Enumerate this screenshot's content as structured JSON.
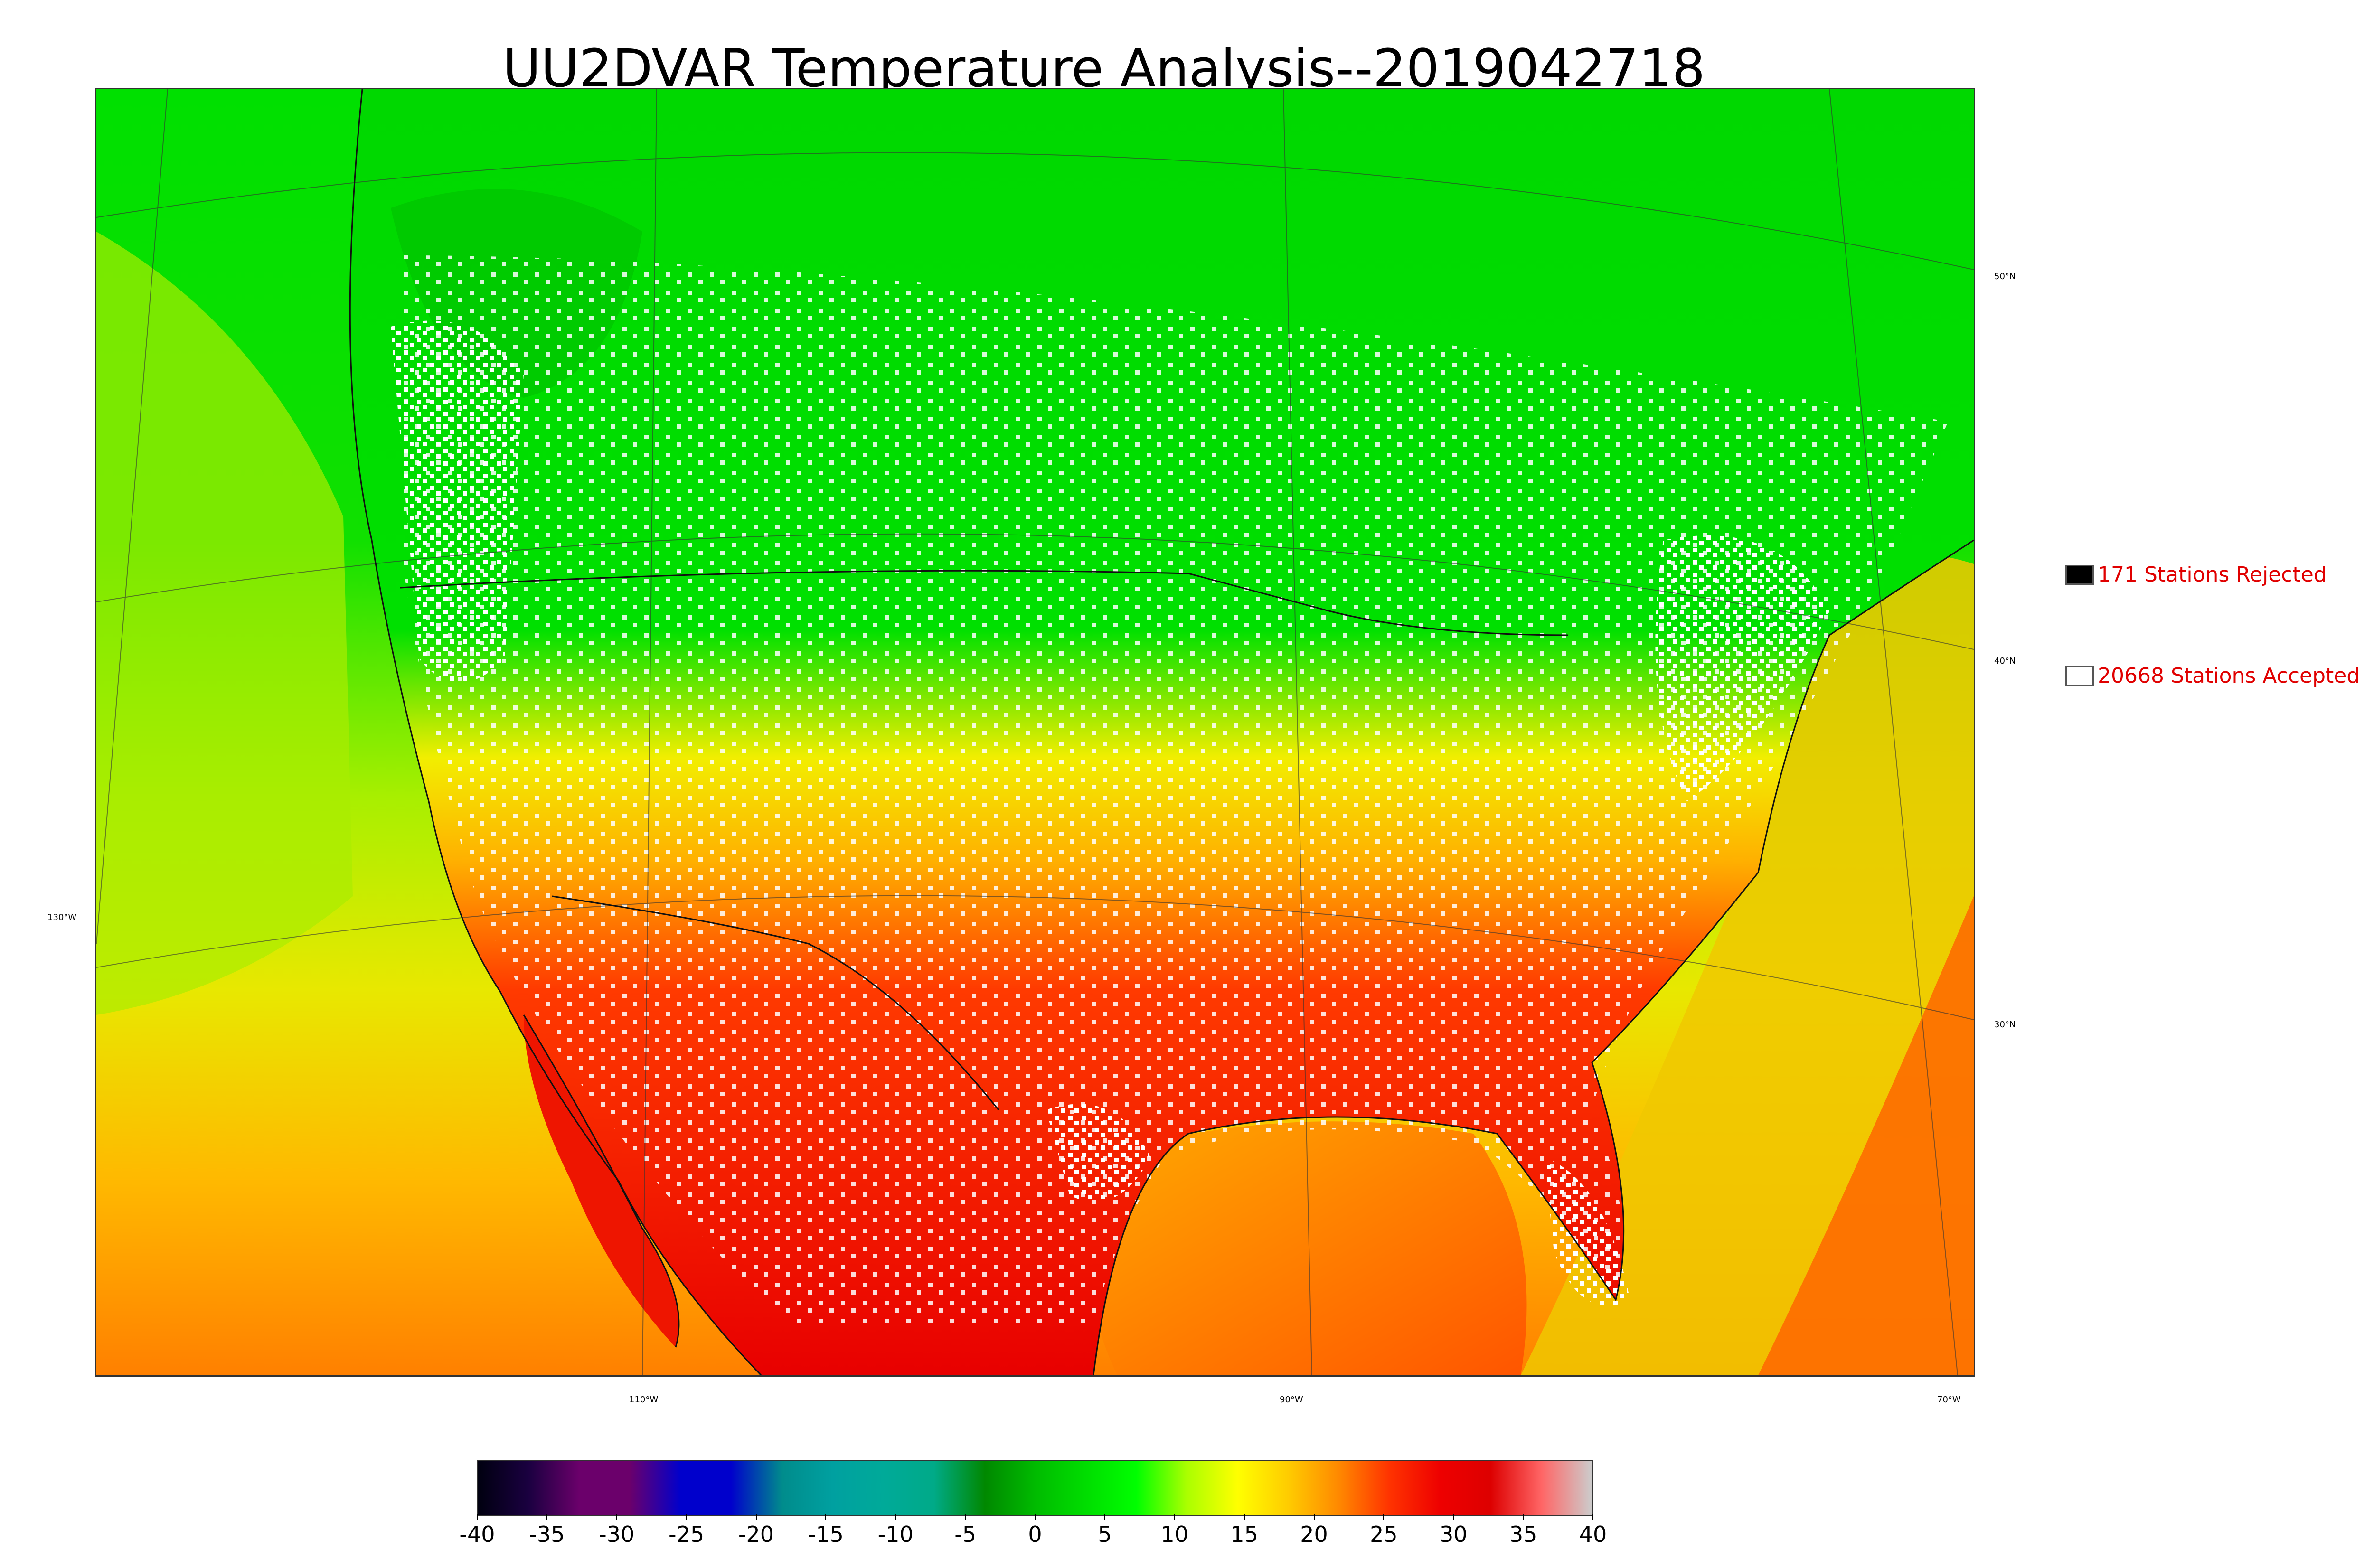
{
  "title": "UU2DVAR Temperature Analysis--2019042718",
  "legend": {
    "rejected": {
      "label": "171 Stations Rejected",
      "color": "#000000"
    },
    "accepted": {
      "label": "20668 Stations Accepted",
      "color": "#ffffff"
    }
  },
  "graticule": {
    "lat_labels": [
      "50°N",
      "40°N",
      "30°N"
    ],
    "lon_labels": [
      "130°W",
      "110°W",
      "90°W",
      "70°W"
    ]
  },
  "colorbar": {
    "ticks": [
      "-40",
      "-35",
      "-30",
      "-25",
      "-20",
      "-15",
      "-10",
      "-5",
      "0",
      "5",
      "10",
      "15",
      "20",
      "25",
      "30",
      "35",
      "40"
    ],
    "range": [
      -40,
      40
    ],
    "colors": [
      "#000010",
      "#1a0040",
      "#6b006b",
      "#6b006b",
      "#0000cc",
      "#0000cc",
      "#008c8c",
      "#00a0a0",
      "#00aa99",
      "#00aa88",
      "#008800",
      "#00bb00",
      "#00dd00",
      "#00ff00",
      "#aaff00",
      "#ffff00",
      "#ffcc00",
      "#ff8800",
      "#ff3300",
      "#ee0000",
      "#dd0000",
      "#ff6666",
      "#cccccc"
    ]
  },
  "map_colors": {
    "north": "#00e000",
    "teal": "#00a090",
    "yellow": "#e0ee00",
    "orange": "#ffa000",
    "red": "#ee1100"
  }
}
